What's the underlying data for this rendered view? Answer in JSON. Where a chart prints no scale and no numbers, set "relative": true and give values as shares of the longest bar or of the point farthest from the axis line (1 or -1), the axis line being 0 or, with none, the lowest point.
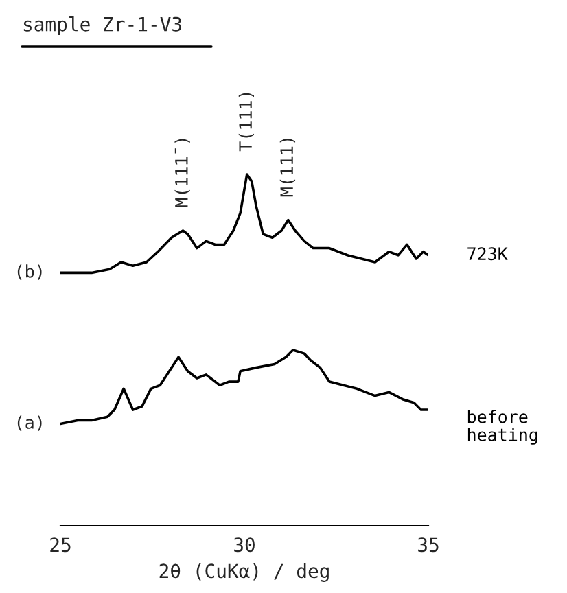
{
  "chart_data": {
    "type": "line",
    "relative": true,
    "title": "sample Zr-1-V3",
    "xlabel": "2θ (CuKα) / deg",
    "xlim": [
      25,
      35
    ],
    "xticks": [
      25,
      30,
      35
    ],
    "grid": false,
    "legend": false,
    "tick_labels": "x",
    "marker": "none",
    "line_style": "solid",
    "series": [
      {
        "name": "723K",
        "color": "#000000",
        "x": [
          25.0,
          25.47,
          25.85,
          26.34,
          26.65,
          26.97,
          27.34,
          27.65,
          28.02,
          28.33,
          28.46,
          28.71,
          28.96,
          29.21,
          29.45,
          29.7,
          29.89,
          30.07,
          30.2,
          30.32,
          30.51,
          30.76,
          31.01,
          31.19,
          31.38,
          31.63,
          31.87,
          32.31,
          32.8,
          33.18,
          33.55,
          33.93,
          34.18,
          34.42,
          34.67,
          34.86,
          35.0
        ],
        "values": [
          0.72,
          0.72,
          0.72,
          0.73,
          0.75,
          0.74,
          0.75,
          0.78,
          0.82,
          0.84,
          0.83,
          0.79,
          0.81,
          0.8,
          0.8,
          0.84,
          0.89,
          1.0,
          0.98,
          0.91,
          0.83,
          0.82,
          0.84,
          0.87,
          0.84,
          0.81,
          0.79,
          0.79,
          0.77,
          0.76,
          0.75,
          0.78,
          0.77,
          0.8,
          0.76,
          0.78,
          0.77
        ]
      },
      {
        "name": "before\nheating",
        "color": "#000000",
        "x": [
          25.0,
          25.47,
          25.85,
          26.28,
          26.47,
          26.72,
          26.97,
          27.22,
          27.46,
          27.71,
          27.96,
          28.21,
          28.46,
          28.71,
          28.96,
          29.33,
          29.58,
          29.83,
          29.89,
          30.32,
          30.82,
          31.13,
          31.32,
          31.63,
          31.81,
          32.06,
          32.31,
          32.69,
          33.06,
          33.55,
          33.93,
          34.3,
          34.61,
          34.8,
          35.0
        ],
        "values": [
          0.29,
          0.3,
          0.3,
          0.31,
          0.33,
          0.39,
          0.33,
          0.34,
          0.39,
          0.4,
          0.44,
          0.48,
          0.44,
          0.42,
          0.43,
          0.4,
          0.41,
          0.41,
          0.44,
          0.45,
          0.46,
          0.48,
          0.5,
          0.49,
          0.47,
          0.45,
          0.41,
          0.4,
          0.39,
          0.37,
          0.38,
          0.36,
          0.35,
          0.33,
          0.33
        ]
      }
    ],
    "annotations": [
      {
        "text": "(b)",
        "x": 25.0,
        "y": 0.72
      },
      {
        "text": "(a)",
        "x": 25.0,
        "y": 0.29
      },
      {
        "text": "M(111̄)",
        "x": 28.33,
        "y": 0.84
      },
      {
        "text": "T(111)",
        "x": 30.07,
        "y": 1.0
      },
      {
        "text": "M(111)",
        "x": 31.19,
        "y": 0.87
      }
    ]
  }
}
